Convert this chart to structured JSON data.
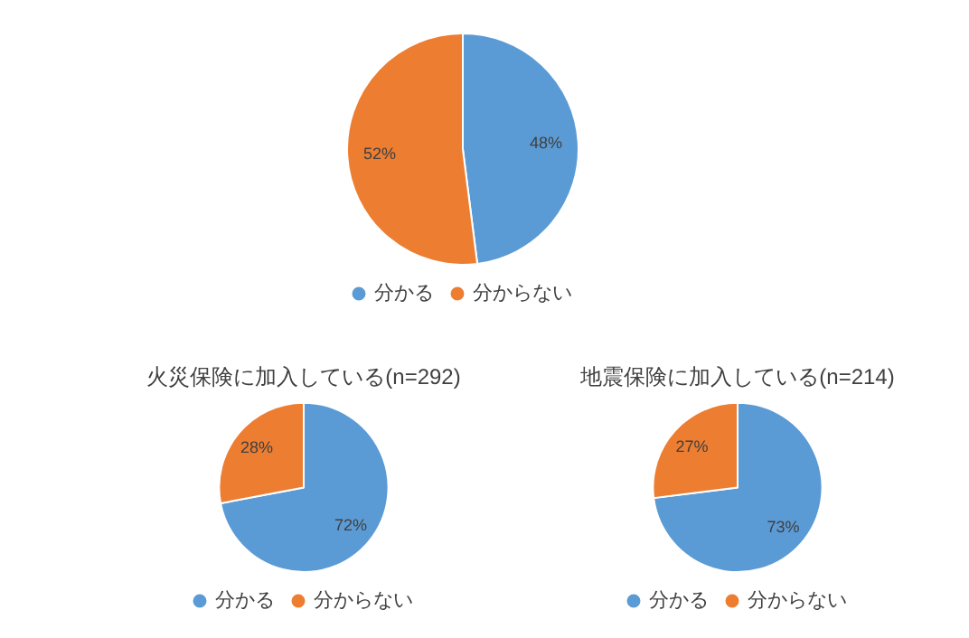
{
  "chart_data": [
    {
      "type": "pie",
      "categories": [
        "分かる",
        "分からない"
      ],
      "values": [
        48,
        52
      ],
      "colors": [
        "#5b9bd5",
        "#ed7d31"
      ],
      "value_labels": [
        "48%",
        "52%"
      ],
      "legend": "bottom"
    },
    {
      "type": "pie",
      "title": "火災保険に加入している(n=292)",
      "categories": [
        "分かる",
        "分からない"
      ],
      "values": [
        72,
        28
      ],
      "colors": [
        "#5b9bd5",
        "#ed7d31"
      ],
      "value_labels": [
        "72%",
        "28%"
      ],
      "legend": "bottom"
    },
    {
      "type": "pie",
      "title": "地震保険に加入している(n=214)",
      "categories": [
        "分かる",
        "分からない"
      ],
      "values": [
        73,
        27
      ],
      "colors": [
        "#5b9bd5",
        "#ed7d31"
      ],
      "value_labels": [
        "73%",
        "27%"
      ],
      "legend": "bottom"
    }
  ]
}
